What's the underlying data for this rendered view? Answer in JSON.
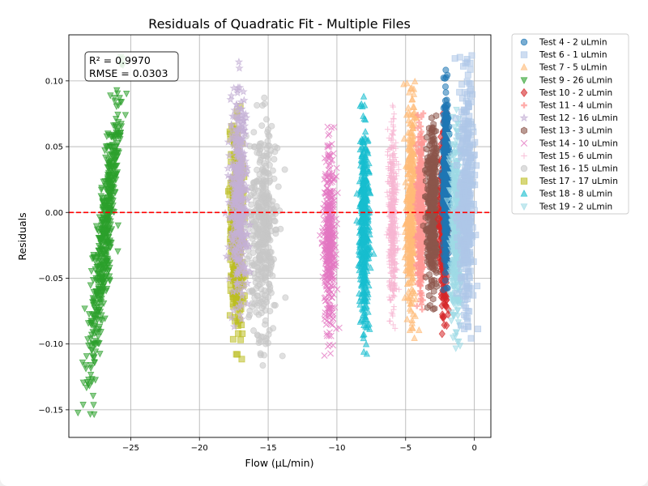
{
  "chart_data": {
    "type": "scatter",
    "title": "Residuals of Quadratic Fit - Multiple Files",
    "xlabel": "Flow (μL/min)",
    "ylabel": "Residuals",
    "xlim": [
      -29.5,
      1.2
    ],
    "ylim": [
      -0.171,
      0.135
    ],
    "xticks": [
      -25,
      -20,
      -15,
      -10,
      -5,
      0
    ],
    "yticks": [
      -0.15,
      -0.1,
      -0.05,
      0.0,
      0.05,
      0.1
    ],
    "xtick_labels": [
      "−25",
      "−20",
      "−15",
      "−10",
      "−5",
      "0"
    ],
    "ytick_labels": [
      "−0.15",
      "−0.10",
      "−0.05",
      "0.00",
      "0.05",
      "0.10"
    ],
    "grid": true,
    "legend_position": "outside-right",
    "reference_line": {
      "y": 0,
      "color": "#e41a1c",
      "style": "dashed"
    },
    "annotation": {
      "lines": [
        "R² = 0.9970",
        "RMSE = 0.0303"
      ]
    },
    "series": [
      {
        "name": "Test 4 - 2 uLmin",
        "marker": "circle",
        "color": "#1f77b4",
        "x_range": [
          -2.3,
          -1.8
        ],
        "y_range": [
          -0.06,
          0.11
        ]
      },
      {
        "name": "Test 6 - 1 uLmin",
        "marker": "square",
        "color": "#aec7e8",
        "x_range": [
          -1.2,
          0.0
        ],
        "y_range": [
          -0.1,
          0.12
        ]
      },
      {
        "name": "Test 7 - 5 uLmin",
        "marker": "triangle-up",
        "color": "#ffbb78",
        "x_range": [
          -5.0,
          -4.2
        ],
        "y_range": [
          -0.1,
          0.1
        ]
      },
      {
        "name": "Test 9 - 26 uLmin",
        "marker": "triangle-down",
        "color": "#2ca02c",
        "x_range": [
          -28.2,
          -25.6
        ],
        "y_range": [
          -0.157,
          0.12
        ]
      },
      {
        "name": "Test 10 - 2 uLmin",
        "marker": "diamond",
        "color": "#d62728",
        "x_range": [
          -2.5,
          -1.9
        ],
        "y_range": [
          -0.095,
          0.08
        ]
      },
      {
        "name": "Test 11 - 4 uLmin",
        "marker": "plus",
        "color": "#ff9896",
        "x_range": [
          -4.2,
          -3.6
        ],
        "y_range": [
          -0.08,
          0.08
        ]
      },
      {
        "name": "Test 12 - 16 uLmin",
        "marker": "star",
        "color": "#c5b0d5",
        "x_range": [
          -17.8,
          -16.5
        ],
        "y_range": [
          -0.09,
          0.115
        ]
      },
      {
        "name": "Test 13 - 3 uLmin",
        "marker": "hexagon",
        "color": "#8c564b",
        "x_range": [
          -3.5,
          -2.6
        ],
        "y_range": [
          -0.08,
          0.08
        ]
      },
      {
        "name": "Test 14 - 10 uLmin",
        "marker": "x",
        "color": "#e377c2",
        "x_range": [
          -11.0,
          -10.1
        ],
        "y_range": [
          -0.11,
          0.07
        ]
      },
      {
        "name": "Test 15 - 6 uLmin",
        "marker": "thin-plus",
        "color": "#f7b6d2",
        "x_range": [
          -6.3,
          -5.6
        ],
        "y_range": [
          -0.094,
          0.083
        ]
      },
      {
        "name": "Test 16 - 15 uLmin",
        "marker": "circle",
        "color": "#c7c7c7",
        "x_range": [
          -16.5,
          -14.3
        ],
        "y_range": [
          -0.118,
          0.088
        ]
      },
      {
        "name": "Test 17 - 17 uLmin",
        "marker": "square",
        "color": "#bcbd22",
        "x_range": [
          -17.8,
          -16.8
        ],
        "y_range": [
          -0.112,
          0.084
        ]
      },
      {
        "name": "Test 18 - 8 uLmin",
        "marker": "triangle-up",
        "color": "#17becf",
        "x_range": [
          -8.4,
          -7.6
        ],
        "y_range": [
          -0.11,
          0.09
        ]
      },
      {
        "name": "Test 19 - 2 uLmin",
        "marker": "triangle-down",
        "color": "#9edae5",
        "x_range": [
          -1.8,
          -0.8
        ],
        "y_range": [
          -0.107,
          0.08
        ]
      }
    ]
  }
}
